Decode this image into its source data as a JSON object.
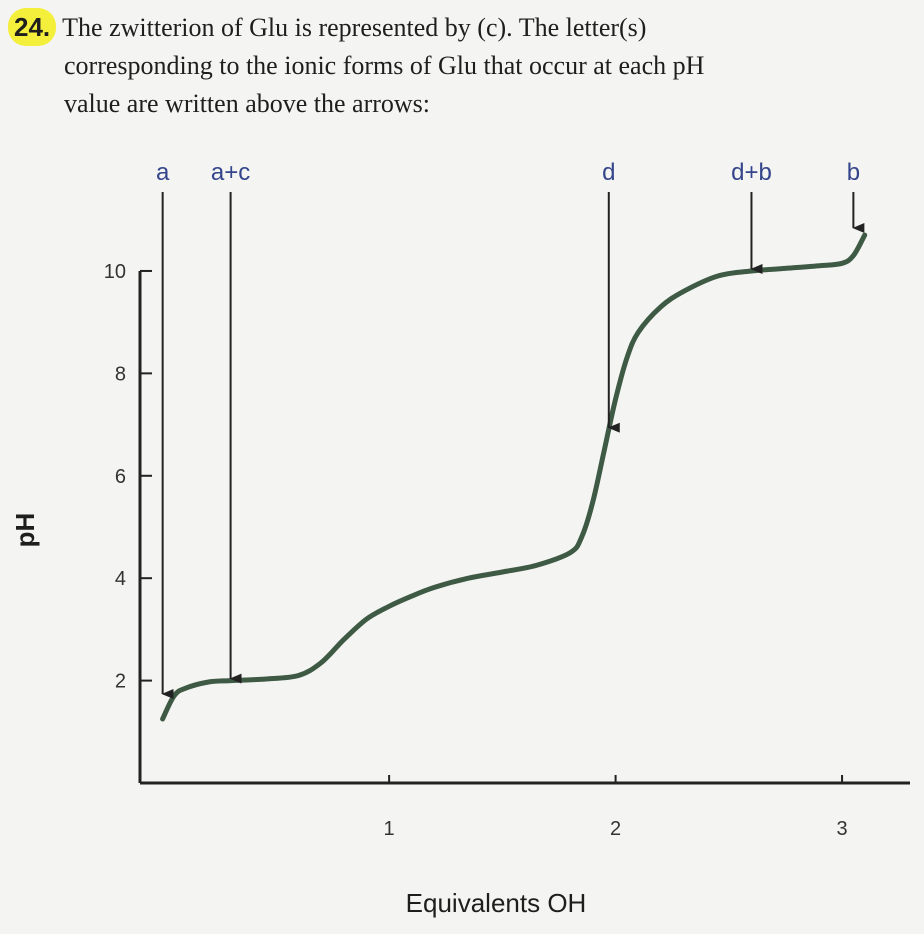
{
  "question": {
    "number": "24.",
    "line1": "The zwitterion of Glu is represented by (c). The letter(s)",
    "line2": "corresponding to the ionic forms of Glu that occur at each pH",
    "line3": "value are written above the arrows:"
  },
  "colors": {
    "curve": "#3e5a45",
    "axis": "#222222",
    "arrow_label": "#34458c",
    "highlight": "#f3ef3a"
  },
  "chart_data": {
    "type": "line",
    "xlabel": "Equivalents OH",
    "ylabel": "pH",
    "xlim": [
      -0.1,
      3.3
    ],
    "ylim": [
      0,
      10.8
    ],
    "x_ticks": [
      "1",
      "2",
      "3"
    ],
    "y_ticks": [
      "2",
      "4",
      "6",
      "8",
      "10"
    ],
    "series": [
      {
        "x": [
          0,
          0.05,
          0.1,
          0.2,
          0.3,
          0.45,
          0.6,
          0.7,
          0.8,
          0.9,
          1.0,
          1.1,
          1.2,
          1.35,
          1.5,
          1.65,
          1.8,
          1.85,
          1.9,
          1.95,
          2.0,
          2.05,
          2.1,
          2.2,
          2.3,
          2.45,
          2.6,
          2.75,
          2.9,
          3.0,
          3.05,
          3.1
        ],
        "y": [
          1.25,
          1.7,
          1.85,
          1.97,
          2.0,
          2.03,
          2.1,
          2.35,
          2.8,
          3.2,
          3.45,
          3.65,
          3.82,
          4.0,
          4.12,
          4.25,
          4.5,
          4.8,
          5.5,
          6.5,
          7.5,
          8.3,
          8.8,
          9.3,
          9.6,
          9.9,
          10.0,
          10.05,
          10.1,
          10.15,
          10.3,
          10.7
        ]
      }
    ],
    "arrows": [
      {
        "label": "a",
        "x": 0.0,
        "y": 1.7
      },
      {
        "label": "a+c",
        "x": 0.3,
        "y": 2.0
      },
      {
        "label": "d",
        "x": 1.97,
        "y": 6.9
      },
      {
        "label": "d+b",
        "x": 2.6,
        "y": 10.0
      },
      {
        "label": "b",
        "x": 3.05,
        "y": 10.8
      }
    ]
  }
}
